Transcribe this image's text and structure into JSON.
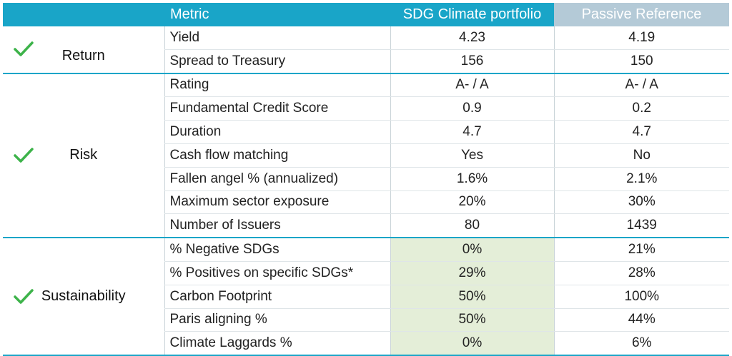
{
  "header": {
    "metric": "Metric",
    "sdg": "SDG Climate portfolio",
    "passive": "Passive Reference"
  },
  "groups": [
    {
      "label": "Return",
      "checked": true,
      "rows": [
        {
          "metric": "Yield",
          "sdg": "4.23",
          "passive": "4.19"
        },
        {
          "metric": "Spread to Treasury",
          "sdg": "156",
          "passive": "150"
        }
      ]
    },
    {
      "label": "Risk",
      "checked": true,
      "rows": [
        {
          "metric": "Rating",
          "sdg": "A- / A",
          "passive": "A- / A"
        },
        {
          "metric": "Fundamental Credit Score",
          "sdg": "0.9",
          "passive": "0.2"
        },
        {
          "metric": "Duration",
          "sdg": "4.7",
          "passive": "4.7"
        },
        {
          "metric": "Cash flow matching",
          "sdg": "Yes",
          "passive": "No"
        },
        {
          "metric": "Fallen angel % (annualized)",
          "sdg": "1.6%",
          "passive": "2.1%"
        },
        {
          "metric": "Maximum sector exposure",
          "sdg": "20%",
          "passive": "30%"
        },
        {
          "metric": "Number of Issuers",
          "sdg": "80",
          "passive": "1439"
        }
      ]
    },
    {
      "label": "Sustainability",
      "checked": true,
      "rows": [
        {
          "metric": "% Negative SDGs",
          "sdg": "0%",
          "passive": "21%"
        },
        {
          "metric": "% Positives on specific SDGs*",
          "sdg": "29%",
          "passive": "28%"
        },
        {
          "metric": "Carbon Footprint",
          "sdg": "50%",
          "passive": "100%"
        },
        {
          "metric": "Paris aligning %",
          "sdg": "50%",
          "passive": "44%"
        },
        {
          "metric": "Climate Laggards %",
          "sdg": "0%",
          "passive": "6%"
        }
      ]
    }
  ],
  "colors": {
    "header_blue": "#19a5c8",
    "header_grey": "#b4cad7",
    "check_green": "#3db34a",
    "highlight_green": "#e4eed8"
  }
}
